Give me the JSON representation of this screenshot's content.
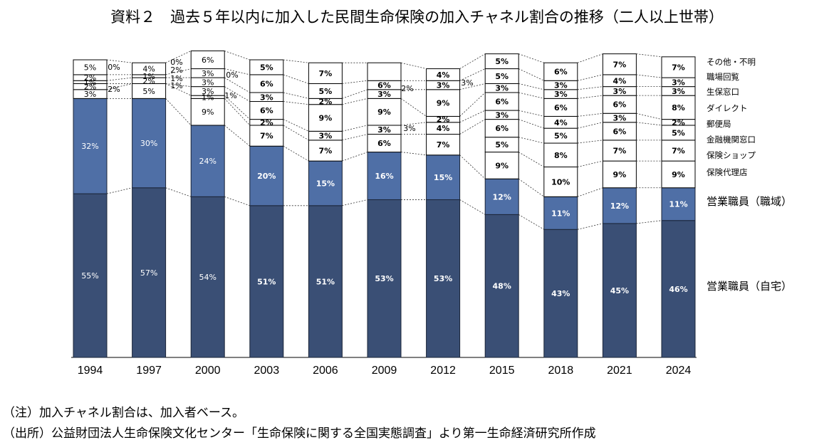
{
  "title": "資料２　過去５年以内に加入した民間生命保険の加入チャネル割合の推移（二人以上世帯）",
  "note": "（注）加入チャネル割合は、加入者ベース。",
  "source": "（出所）公益財団法人生命保険文化センター「生命保険に関する全国実態調査」より第一生命経済研究所作成",
  "colors": {
    "home": "#3a4f75",
    "workplace": "#4f6fa6",
    "other": "#ffffff",
    "border": "#000000"
  },
  "chart_data": {
    "type": "bar",
    "stacked": true,
    "normalized": true,
    "categories": [
      "1994",
      "1997",
      "2000",
      "2003",
      "2006",
      "2009",
      "2012",
      "2015",
      "2018",
      "2021",
      "2024"
    ],
    "series": [
      {
        "name": "営業職員（自宅）",
        "values": [
          55,
          57,
          54,
          51,
          51,
          53,
          53,
          48,
          43,
          45,
          46
        ]
      },
      {
        "name": "営業職員（職域）",
        "values": [
          32,
          30,
          24,
          20,
          15,
          16,
          15,
          12,
          11,
          12,
          11
        ]
      },
      {
        "name": "保険代理店",
        "values": [
          null,
          null,
          null,
          null,
          null,
          null,
          null,
          9,
          10,
          9,
          9
        ]
      },
      {
        "name": "保険ショップ",
        "values": [
          null,
          null,
          null,
          null,
          null,
          null,
          null,
          5,
          8,
          7,
          7
        ]
      },
      {
        "name": "金融機関窓口",
        "values": [
          null,
          null,
          9,
          7,
          7,
          6,
          7,
          6,
          5,
          6,
          5
        ]
      },
      {
        "name": "郵便局",
        "values": [
          3,
          5,
          1,
          2,
          3,
          3,
          4,
          3,
          4,
          3,
          2
        ]
      },
      {
        "name": "ダイレクト",
        "values": [
          2,
          0,
          3,
          6,
          9,
          9,
          2,
          6,
          6,
          6,
          8
        ]
      },
      {
        "name": "生保窓口",
        "values": [
          1,
          2,
          3,
          3,
          2,
          3,
          9,
          3,
          3,
          3,
          3
        ]
      },
      {
        "name": "職場回覧",
        "values": [
          2,
          1,
          3,
          6,
          5,
          3,
          3,
          5,
          3,
          4,
          3
        ]
      },
      {
        "name": "その他・不明",
        "values": [
          5,
          4,
          6,
          5,
          7,
          6,
          4,
          5,
          6,
          7,
          7
        ]
      }
    ],
    "segment_labels": [
      [
        "55%",
        "32%",
        "3%",
        "2%",
        "1%",
        "2%",
        "5%"
      ],
      [
        "57%",
        "30%",
        "5%",
        "2%",
        "1%",
        "4%"
      ],
      [
        "54%",
        "24%",
        "9%",
        "1%",
        "3%",
        "3%",
        "3%",
        "6%"
      ],
      [
        "51%",
        "20%",
        "7%",
        "2%",
        "6%",
        "3%",
        "6%",
        "5%"
      ],
      [
        "51%",
        "15%",
        "7%",
        "3%",
        "9%",
        "2%",
        "5%",
        "7%"
      ],
      [
        "53%",
        "16%",
        "6%",
        "3%",
        "9%",
        "3%",
        "6%"
      ],
      [
        "53%",
        "15%",
        "7%",
        "4%",
        "2%",
        "9%",
        "3%",
        "4%"
      ],
      [
        "48%",
        "12%",
        "9%",
        "5%",
        "6%",
        "3%",
        "6%",
        "3%",
        "5%",
        "5%"
      ],
      [
        "43%",
        "11%",
        "10%",
        "8%",
        "5%",
        "4%",
        "6%",
        "3%",
        "3%",
        "6%"
      ],
      [
        "45%",
        "12%",
        "9%",
        "7%",
        "6%",
        "3%",
        "6%",
        "3%",
        "4%",
        "7%"
      ],
      [
        "46%",
        "11%",
        "9%",
        "7%",
        "5%",
        "2%",
        "8%",
        "3%",
        "3%",
        "7%"
      ]
    ],
    "callouts": [
      "0%",
      "2%",
      "1%",
      "0%",
      "2%",
      "1%",
      "0%",
      "1%",
      "2%",
      "3%",
      "3%"
    ],
    "legend": [
      "その他・不明",
      "職場回覧",
      "生保窓口",
      "ダイレクト",
      "郵便局",
      "金融機関窓口",
      "保険ショップ",
      "保険代理店",
      "営業職員（職域）",
      "営業職員（自宅）"
    ],
    "ylim": [
      0,
      100
    ],
    "xlabel": "",
    "ylabel": ""
  }
}
